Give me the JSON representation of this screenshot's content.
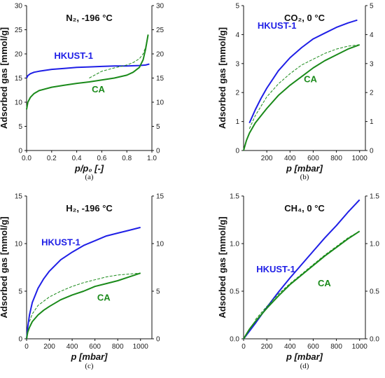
{
  "colors": {
    "hkust": "#1f1fe6",
    "ca": "#1a8a1a",
    "axis": "#111111"
  },
  "chart_data": [
    {
      "type": "line",
      "title": "N₂, -196 °C",
      "xlabel": "p/p₀ [-]",
      "ylabel": "Adsorbed gas [mmol/g]",
      "xlim": [
        0,
        1
      ],
      "ylim": [
        0,
        30
      ],
      "xticks": [
        "0.0",
        "0.2",
        "0.4",
        "0.6",
        "0.8",
        "1.0"
      ],
      "xtick_values": [
        0,
        0.2,
        0.4,
        0.6,
        0.8,
        1.0
      ],
      "yticks": [
        "0",
        "5",
        "10",
        "15",
        "20",
        "25",
        "30"
      ],
      "ytick_values": [
        0,
        5,
        10,
        15,
        20,
        25,
        30
      ],
      "caption": "(a)",
      "series": [
        {
          "name": "HKUST-1",
          "color": "hkust",
          "x": [
            0.0,
            0.01,
            0.03,
            0.06,
            0.1,
            0.2,
            0.3,
            0.4,
            0.5,
            0.6,
            0.7,
            0.8,
            0.9,
            0.95,
            0.98
          ],
          "y": [
            15.0,
            15.5,
            15.9,
            16.2,
            16.4,
            16.8,
            17.0,
            17.2,
            17.3,
            17.4,
            17.5,
            17.5,
            17.6,
            17.7,
            17.9
          ]
        },
        {
          "name": "CA",
          "color": "ca",
          "x": [
            0.0,
            0.01,
            0.03,
            0.06,
            0.1,
            0.2,
            0.3,
            0.4,
            0.5,
            0.6,
            0.7,
            0.8,
            0.85,
            0.9,
            0.93,
            0.95,
            0.97
          ],
          "y": [
            8.5,
            10.0,
            11.0,
            11.8,
            12.4,
            13.1,
            13.5,
            13.9,
            14.2,
            14.6,
            15.0,
            15.6,
            16.2,
            17.2,
            18.8,
            21.0,
            24.0
          ]
        },
        {
          "name": "CA desorption",
          "color": "ca",
          "dashed": true,
          "x": [
            0.5,
            0.6,
            0.7,
            0.8,
            0.85,
            0.9,
            0.93,
            0.95,
            0.97
          ],
          "y": [
            15.0,
            16.4,
            17.1,
            17.7,
            18.2,
            19.0,
            20.0,
            21.4,
            24.0
          ]
        }
      ],
      "labels": [
        {
          "text": "HKUST-1",
          "color": "hkust",
          "x": 0.22,
          "y": 19.0
        },
        {
          "text": "CA",
          "color": "ca",
          "x": 0.52,
          "y": 12.0
        }
      ]
    },
    {
      "type": "line",
      "title": "CO₂, 0 °C",
      "xlabel": "p [mbar]",
      "ylabel": "Adsorbed gas [mmol/g]",
      "xlim": [
        0,
        1050
      ],
      "ylim": [
        0,
        5
      ],
      "xticks": [
        "200",
        "400",
        "600",
        "800",
        "1000"
      ],
      "xtick_values": [
        200,
        400,
        600,
        800,
        1000
      ],
      "yticks": [
        "0",
        "1",
        "2",
        "3",
        "4",
        "5"
      ],
      "ytick_values": [
        0,
        1,
        2,
        3,
        4,
        5
      ],
      "caption": "(b)",
      "series": [
        {
          "name": "HKUST-1",
          "color": "hkust",
          "x": [
            50,
            100,
            150,
            200,
            300,
            400,
            500,
            600,
            700,
            800,
            900,
            980
          ],
          "y": [
            0.95,
            1.4,
            1.8,
            2.15,
            2.75,
            3.2,
            3.55,
            3.85,
            4.05,
            4.25,
            4.4,
            4.5
          ]
        },
        {
          "name": "CA",
          "color": "ca",
          "x": [
            0,
            10,
            25,
            50,
            100,
            150,
            200,
            300,
            400,
            500,
            600,
            700,
            800,
            900,
            1000
          ],
          "y": [
            0.0,
            0.15,
            0.35,
            0.6,
            0.95,
            1.2,
            1.45,
            1.9,
            2.25,
            2.55,
            2.85,
            3.1,
            3.3,
            3.5,
            3.65
          ]
        },
        {
          "name": "CA desorption",
          "color": "ca",
          "dashed": true,
          "x": [
            50,
            100,
            200,
            300,
            400,
            500,
            600,
            700,
            800,
            900,
            1000
          ],
          "y": [
            0.75,
            1.2,
            1.85,
            2.3,
            2.65,
            2.95,
            3.15,
            3.35,
            3.5,
            3.6,
            3.65
          ]
        }
      ],
      "labels": [
        {
          "text": "HKUST-1",
          "color": "hkust",
          "x": 120,
          "y": 4.2
        },
        {
          "text": "CA",
          "color": "ca",
          "x": 520,
          "y": 2.35
        }
      ]
    },
    {
      "type": "line",
      "title": "H₂, -196 °C",
      "xlabel": "p [mbar]",
      "ylabel": "Adsorbed gas [mmol/g]",
      "xlim": [
        0,
        1100
      ],
      "ylim": [
        0,
        15
      ],
      "xticks": [
        "0",
        "200",
        "400",
        "600",
        "800",
        "1000"
      ],
      "xtick_values": [
        0,
        200,
        400,
        600,
        800,
        1000
      ],
      "yticks": [
        "0",
        "5",
        "10",
        "15"
      ],
      "ytick_values": [
        0,
        5,
        10,
        15
      ],
      "caption": "(c)",
      "series": [
        {
          "name": "HKUST-1",
          "color": "hkust",
          "x": [
            0,
            10,
            25,
            50,
            100,
            150,
            200,
            300,
            400,
            500,
            600,
            700,
            800,
            900,
            1000
          ],
          "y": [
            0.0,
            1.2,
            2.5,
            3.8,
            5.3,
            6.3,
            7.1,
            8.3,
            9.1,
            9.8,
            10.3,
            10.8,
            11.1,
            11.4,
            11.7
          ]
        },
        {
          "name": "CA",
          "color": "ca",
          "x": [
            0,
            10,
            25,
            50,
            100,
            150,
            200,
            300,
            400,
            500,
            600,
            700,
            800,
            900,
            1000
          ],
          "y": [
            0.0,
            0.7,
            1.2,
            1.8,
            2.5,
            3.0,
            3.4,
            4.1,
            4.6,
            5.0,
            5.5,
            5.8,
            6.1,
            6.5,
            6.9
          ]
        },
        {
          "name": "CA desorption",
          "color": "ca",
          "dashed": true,
          "x": [
            25,
            50,
            100,
            200,
            300,
            400,
            500,
            600,
            700,
            800,
            900,
            1000
          ],
          "y": [
            1.8,
            2.6,
            3.5,
            4.4,
            5.0,
            5.5,
            5.9,
            6.2,
            6.5,
            6.7,
            6.8,
            6.9
          ]
        }
      ],
      "labels": [
        {
          "text": "HKUST-1",
          "color": "hkust",
          "x": 130,
          "y": 9.8
        },
        {
          "text": "CA",
          "color": "ca",
          "x": 620,
          "y": 4.0
        }
      ]
    },
    {
      "type": "line",
      "title": "CH₄, 0 °C",
      "xlabel": "p [mbar]",
      "ylabel": "Adsorbed gas [mmol/g]",
      "xlim": [
        0,
        1050
      ],
      "ylim": [
        0,
        1.5
      ],
      "xticks": [
        "0",
        "200",
        "400",
        "600",
        "800",
        "1000"
      ],
      "xtick_values": [
        0,
        200,
        400,
        600,
        800,
        1000
      ],
      "yticks": [
        "0.0",
        "0.5",
        "1.0",
        "1.5"
      ],
      "ytick_values": [
        0,
        0.5,
        1.0,
        1.5
      ],
      "caption": "(d)",
      "series": [
        {
          "name": "HKUST-1",
          "color": "hkust",
          "x": [
            0,
            50,
            100,
            200,
            300,
            400,
            500,
            600,
            700,
            800,
            900,
            1000
          ],
          "y": [
            0.0,
            0.08,
            0.16,
            0.33,
            0.49,
            0.64,
            0.78,
            0.92,
            1.06,
            1.19,
            1.33,
            1.46
          ]
        },
        {
          "name": "CA",
          "color": "ca",
          "x": [
            0,
            25,
            50,
            100,
            200,
            300,
            400,
            500,
            600,
            700,
            800,
            900,
            1000
          ],
          "y": [
            0.0,
            0.05,
            0.1,
            0.18,
            0.32,
            0.45,
            0.57,
            0.67,
            0.77,
            0.87,
            0.96,
            1.05,
            1.13
          ]
        },
        {
          "name": "CA desorption",
          "color": "ca",
          "dashed": true,
          "x": [
            100,
            200,
            300,
            400,
            500,
            600,
            700,
            800,
            900,
            1000
          ],
          "y": [
            0.2,
            0.34,
            0.47,
            0.58,
            0.68,
            0.78,
            0.88,
            0.97,
            1.06,
            1.13
          ]
        }
      ],
      "labels": [
        {
          "text": "HKUST-1",
          "color": "hkust",
          "x": 110,
          "y": 0.7
        },
        {
          "text": "CA",
          "color": "ca",
          "x": 640,
          "y": 0.55
        }
      ]
    }
  ]
}
